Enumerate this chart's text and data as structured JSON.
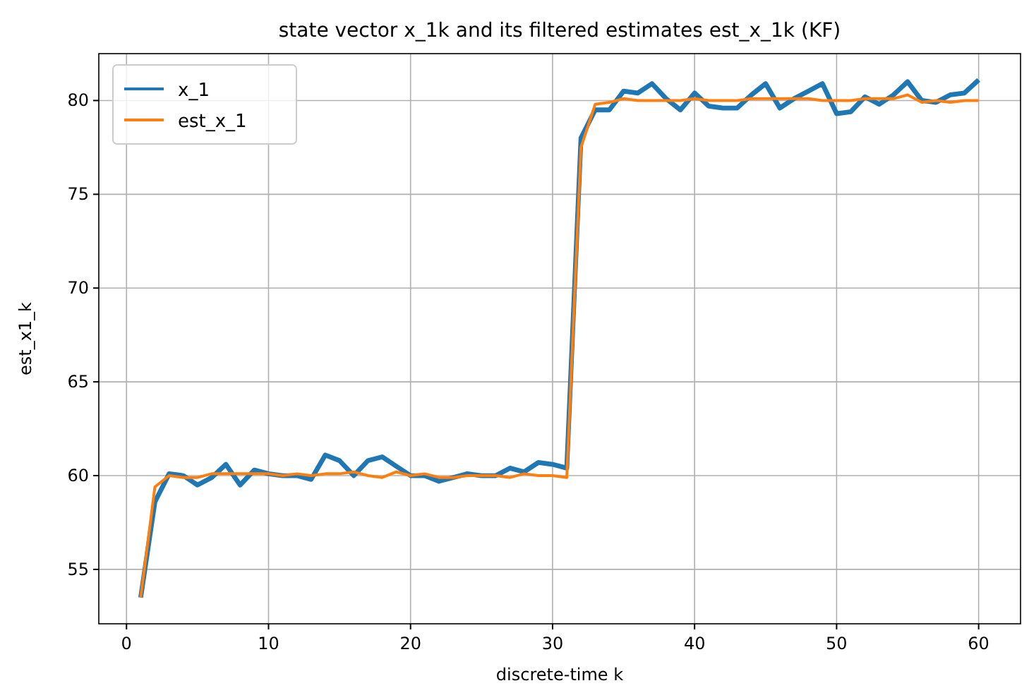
{
  "chart_data": {
    "type": "line",
    "title": "state vector x_1k and its filtered estimates est_x_1k (KF)",
    "xlabel": "discrete-time k",
    "ylabel": "est_x1_k",
    "x": [
      1,
      2,
      3,
      4,
      5,
      6,
      7,
      8,
      9,
      10,
      11,
      12,
      13,
      14,
      15,
      16,
      17,
      18,
      19,
      20,
      21,
      22,
      23,
      24,
      25,
      26,
      27,
      28,
      29,
      30,
      31,
      32,
      33,
      34,
      35,
      36,
      37,
      38,
      39,
      40,
      41,
      42,
      43,
      44,
      45,
      46,
      47,
      48,
      49,
      50,
      51,
      52,
      53,
      54,
      55,
      56,
      57,
      58,
      59,
      60
    ],
    "series": [
      {
        "name": "x_1",
        "color": "#1f77b4",
        "values": [
          53.5,
          58.6,
          60.1,
          60.0,
          59.5,
          59.9,
          60.6,
          59.5,
          60.3,
          60.1,
          60.0,
          60.0,
          59.8,
          61.1,
          60.8,
          60.0,
          60.8,
          61.0,
          60.5,
          60.0,
          60.0,
          59.7,
          59.9,
          60.1,
          60.0,
          60.0,
          60.4,
          60.2,
          60.7,
          60.6,
          60.4,
          78.0,
          79.5,
          79.5,
          80.5,
          80.4,
          80.9,
          80.1,
          79.5,
          80.4,
          79.7,
          79.6,
          79.6,
          80.3,
          80.9,
          79.6,
          80.1,
          80.5,
          80.9,
          79.3,
          79.4,
          80.2,
          79.8,
          80.3,
          81.0,
          80.0,
          79.9,
          80.3,
          80.4,
          81.1
        ]
      },
      {
        "name": "est_x_1",
        "color": "#ff7f0e",
        "values": [
          53.5,
          59.4,
          60.0,
          59.9,
          59.9,
          60.1,
          60.1,
          60.1,
          60.1,
          60.1,
          60.0,
          60.1,
          60.0,
          60.1,
          60.1,
          60.2,
          60.0,
          59.9,
          60.2,
          60.0,
          60.1,
          59.9,
          59.9,
          60.0,
          60.0,
          60.0,
          59.9,
          60.1,
          60.0,
          60.0,
          59.9,
          77.5,
          79.8,
          79.9,
          80.1,
          80.0,
          80.0,
          80.0,
          80.0,
          80.1,
          80.0,
          80.0,
          80.0,
          80.1,
          80.1,
          80.1,
          80.1,
          80.1,
          80.0,
          80.0,
          80.0,
          80.1,
          80.1,
          80.1,
          80.3,
          79.9,
          80.0,
          79.9,
          80.0,
          80.0
        ]
      }
    ],
    "xlim": [
      -1.95,
      62.95
    ],
    "ylim": [
      52.1,
      82.5
    ],
    "xticks": [
      0,
      10,
      20,
      30,
      40,
      50,
      60
    ],
    "yticks": [
      55,
      60,
      65,
      70,
      75,
      80
    ],
    "grid": true,
    "legend": "top left"
  }
}
